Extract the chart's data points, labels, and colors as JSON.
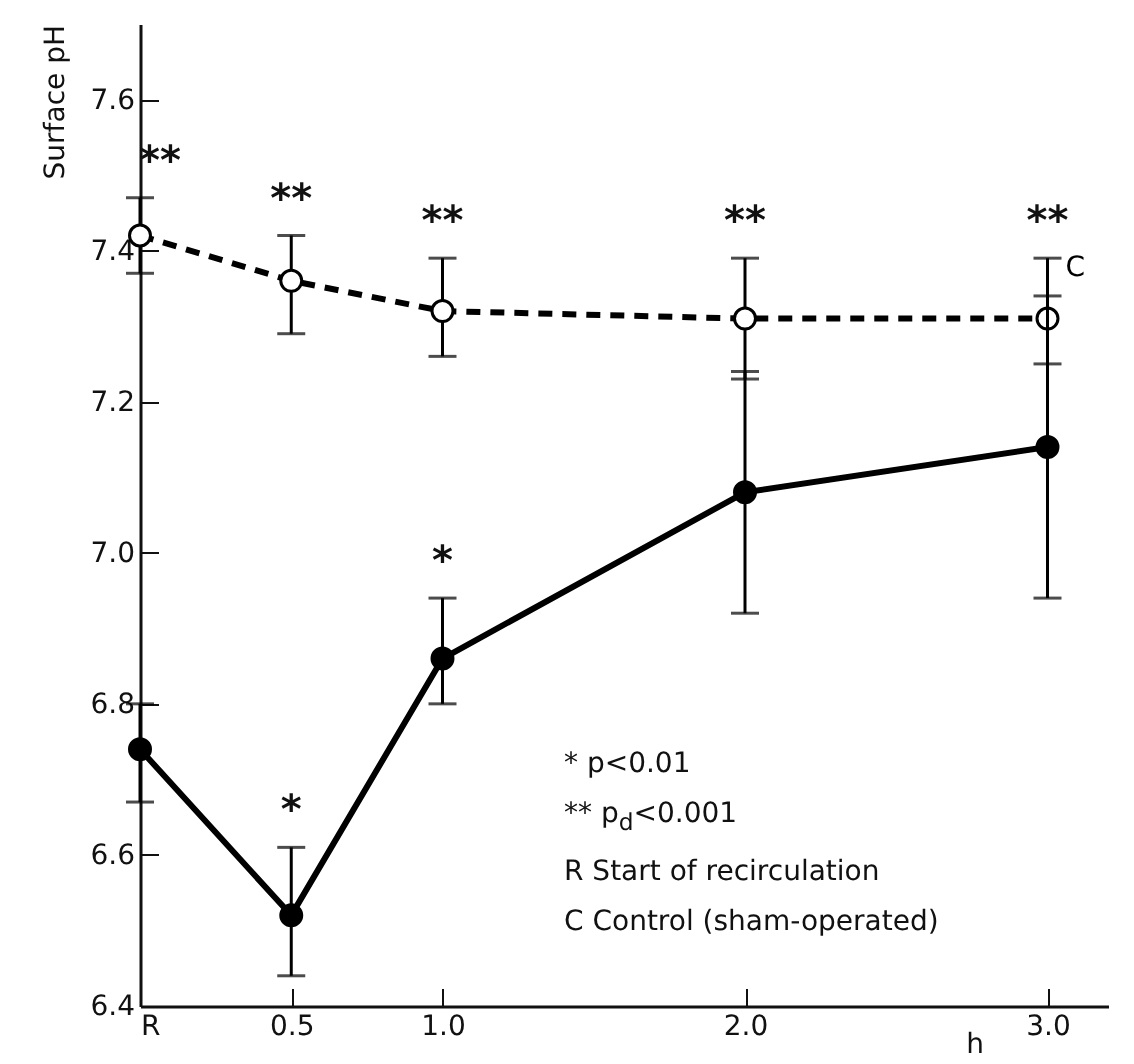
{
  "chart_data": {
    "type": "line",
    "ylabel": "Surface pH",
    "xlabel": "h",
    "x": [
      0,
      0.5,
      1,
      2,
      3
    ],
    "xlim": [
      0,
      3.2
    ],
    "xticks": [
      {
        "value": 0,
        "label": "R"
      },
      0.5,
      {
        "value": 1,
        "label": "1.0"
      },
      {
        "value": 2,
        "label": "2.0"
      },
      {
        "value": 3,
        "label": "3.0"
      }
    ],
    "ylim": [
      6.4,
      7.7
    ],
    "yticks": [
      6.4,
      6.6,
      6.8,
      {
        "value": 7,
        "label": "7.0"
      },
      7.2,
      7.4,
      7.6
    ],
    "marker": "circle",
    "series": [
      {
        "name": "C",
        "color": "#000000",
        "line_style": "dashed",
        "values": [
          7.42,
          7.36,
          7.32,
          7.31,
          7.31
        ],
        "errors": [
          [
            7.37,
            7.47
          ],
          [
            7.29,
            7.42
          ],
          [
            7.26,
            7.39
          ],
          [
            7.23,
            7.39
          ],
          [
            7.25,
            7.39
          ]
        ]
      },
      {
        "color": "#000000",
        "line_style": "solid",
        "values": [
          6.74,
          6.52,
          6.86,
          7.08,
          7.14
        ],
        "errors": [
          [
            6.67,
            6.8
          ],
          [
            6.44,
            6.61
          ],
          [
            6.8,
            6.94
          ],
          [
            6.92,
            7.24
          ],
          [
            6.94,
            7.34
          ]
        ]
      }
    ],
    "annotations": [
      {
        "text": "**",
        "x": 0,
        "y": 7.47
      },
      {
        "text": "**",
        "x": 0.5,
        "y": 7.42
      },
      {
        "text": "**",
        "x": 1,
        "y": 7.39
      },
      {
        "text": "**",
        "x": 2,
        "y": 7.39
      },
      {
        "text": "**",
        "x": 3,
        "y": 7.39
      },
      {
        "text": "*",
        "x": 0.5,
        "y": 6.61
      },
      {
        "text": "*",
        "x": 1,
        "y": 6.94
      },
      "* p<0.01",
      "** p$_{d}$<0.001",
      "R Start of recirculation",
      "C Control (sham-operated)"
    ]
  }
}
